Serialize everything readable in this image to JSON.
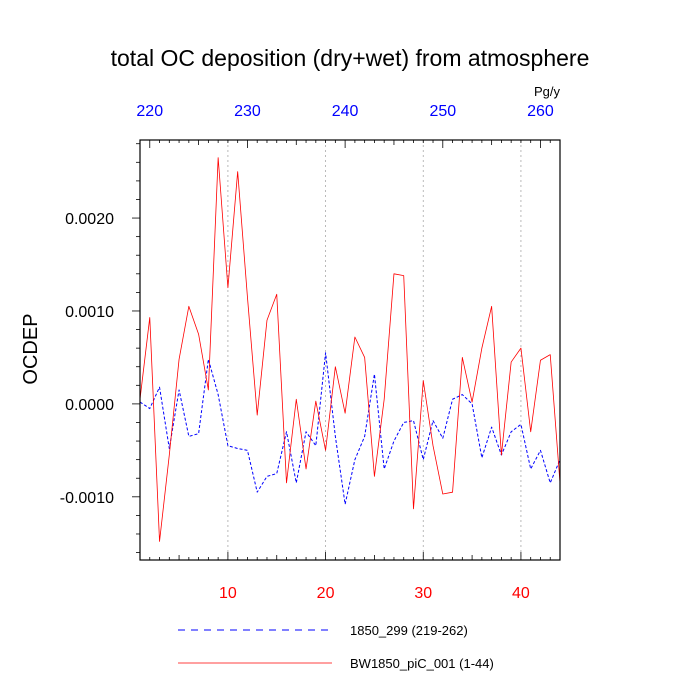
{
  "chart_data": {
    "type": "line",
    "title": "total OC deposition (dry+wet) from atmosphere",
    "ylabel": "OCDEP",
    "units": "Pg/y",
    "bottom_axis": {
      "range": [
        1,
        44
      ],
      "ticks": [
        10,
        20,
        30,
        40
      ],
      "tick_labels": [
        "10",
        "20",
        "30",
        "40"
      ],
      "color": "#ff0000"
    },
    "top_axis": {
      "range": [
        219,
        262
      ],
      "ticks": [
        220,
        230,
        240,
        250,
        260
      ],
      "tick_labels": [
        "220",
        "230",
        "240",
        "250",
        "260"
      ],
      "color": "#0000ff"
    },
    "y_axis": {
      "range": [
        -0.00168,
        0.00284
      ],
      "ticks": [
        -0.001,
        0.0,
        0.001,
        0.002
      ],
      "tick_labels": [
        "-0.0010",
        "0.0000",
        "0.0010",
        "0.0020"
      ]
    },
    "vertical_gridlines": true,
    "series": [
      {
        "name": "1850_299 (219-262)",
        "style": "dashed",
        "color": "#0000ff",
        "axis": "top",
        "x": [
          219,
          220,
          221,
          222,
          223,
          224,
          225,
          226,
          227,
          228,
          229,
          230,
          231,
          232,
          233,
          234,
          235,
          236,
          237,
          238,
          239,
          240,
          241,
          242,
          243,
          244,
          245,
          246,
          247,
          248,
          249,
          250,
          251,
          252,
          253,
          254,
          255,
          256,
          257,
          258,
          259,
          260,
          261,
          262
        ],
        "values": [
          2e-05,
          -5e-05,
          0.00018,
          -0.00048,
          0.00015,
          -0.00035,
          -0.00032,
          0.00048,
          0.0001,
          -0.00045,
          -0.00048,
          -0.0005,
          -0.00095,
          -0.00078,
          -0.00075,
          -0.0003,
          -0.00085,
          -0.0003,
          -0.00045,
          0.00055,
          -0.00035,
          -0.00108,
          -0.0006,
          -0.00035,
          0.00032,
          -0.0007,
          -0.0004,
          -0.0002,
          -0.00018,
          -0.0006,
          -0.00018,
          -0.00037,
          5e-05,
          0.0001,
          0.0,
          -0.00058,
          -0.00025,
          -0.00055,
          -0.0003,
          -0.00022,
          -0.0007,
          -0.0005,
          -0.00085,
          -0.0006
        ]
      },
      {
        "name": "BW1850_piC_001 (1-44)",
        "style": "solid",
        "color": "#ff0000",
        "axis": "bottom",
        "x": [
          1,
          2,
          3,
          4,
          5,
          6,
          7,
          8,
          9,
          10,
          11,
          12,
          13,
          14,
          15,
          16,
          17,
          18,
          19,
          20,
          21,
          22,
          23,
          24,
          25,
          26,
          27,
          28,
          29,
          30,
          31,
          32,
          33,
          34,
          35,
          36,
          37,
          38,
          39,
          40,
          41,
          42,
          43,
          44
        ],
        "values": [
          5e-05,
          0.00093,
          -0.00148,
          -0.00055,
          0.00048,
          0.00105,
          0.00075,
          0.00015,
          0.00265,
          0.00125,
          0.0025,
          0.00115,
          -0.00012,
          0.0009,
          0.00118,
          -0.00085,
          5e-05,
          -0.0007,
          3e-05,
          -0.0005,
          0.0004,
          -0.0001,
          0.00072,
          0.0005,
          -0.00078,
          5e-05,
          0.0014,
          0.00138,
          -0.00113,
          0.00025,
          -0.00045,
          -0.00097,
          -0.00095,
          0.0005,
          2e-05,
          0.0006,
          0.00105,
          -0.00055,
          0.00045,
          0.0006,
          -0.0003,
          0.00047,
          0.00053,
          -0.00085
        ]
      }
    ],
    "legend": {
      "placement": "bottom",
      "entries": [
        "1850_299 (219-262)",
        "BW1850_piC_001 (1-44)"
      ]
    }
  }
}
